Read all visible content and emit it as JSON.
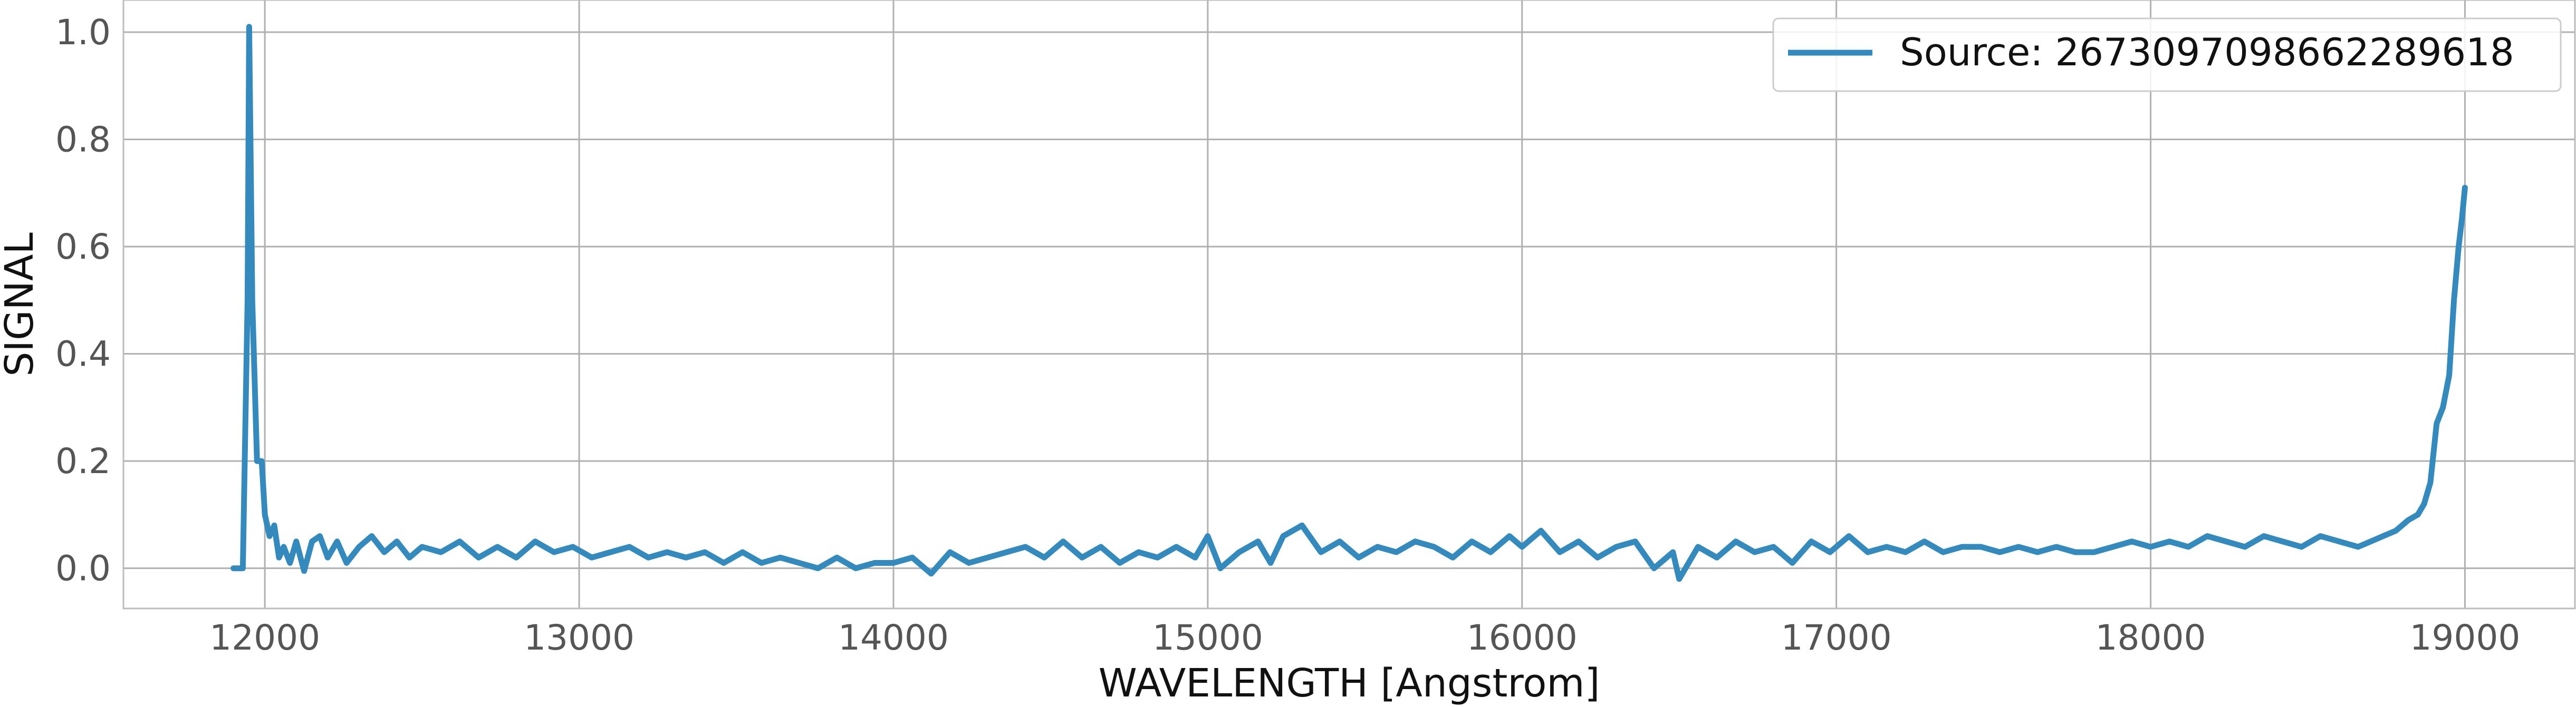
{
  "chart_data": {
    "type": "line",
    "title": "",
    "xlabel": "WAVELENGTH [Angstrom]",
    "ylabel": "SIGNAL",
    "xlim": [
      11550,
      19350
    ],
    "ylim": [
      -0.075,
      1.06
    ],
    "x_ticks": [
      12000,
      13000,
      14000,
      15000,
      16000,
      17000,
      18000,
      19000
    ],
    "y_ticks": [
      0.0,
      0.2,
      0.4,
      0.6,
      0.8,
      1.0
    ],
    "y_tick_labels": [
      "0.0",
      "0.2",
      "0.4",
      "0.6",
      "0.8",
      "1.0"
    ],
    "grid": true,
    "legend_position": "top-right",
    "series_color": "#348abd",
    "series": [
      {
        "name": "Source: 2673097098662289618",
        "x": [
          11900,
          11930,
          11945,
          11950,
          11960,
          11975,
          11990,
          12000,
          12015,
          12030,
          12045,
          12060,
          12080,
          12100,
          12125,
          12150,
          12175,
          12200,
          12230,
          12260,
          12300,
          12340,
          12380,
          12420,
          12460,
          12500,
          12560,
          12620,
          12680,
          12740,
          12800,
          12860,
          12920,
          12980,
          13040,
          13100,
          13160,
          13220,
          13280,
          13340,
          13400,
          13460,
          13520,
          13580,
          13640,
          13700,
          13760,
          13820,
          13880,
          13940,
          14000,
          14060,
          14120,
          14180,
          14240,
          14300,
          14360,
          14420,
          14480,
          14540,
          14600,
          14660,
          14720,
          14780,
          14840,
          14900,
          14960,
          15000,
          15040,
          15100,
          15160,
          15200,
          15240,
          15300,
          15360,
          15420,
          15480,
          15540,
          15600,
          15660,
          15720,
          15780,
          15840,
          15900,
          15960,
          16000,
          16060,
          16120,
          16180,
          16240,
          16300,
          16360,
          16420,
          16480,
          16500,
          16560,
          16620,
          16680,
          16740,
          16800,
          16860,
          16920,
          16980,
          17040,
          17100,
          17160,
          17220,
          17280,
          17340,
          17400,
          17460,
          17520,
          17580,
          17640,
          17700,
          17760,
          17820,
          17880,
          17940,
          18000,
          18060,
          18120,
          18180,
          18240,
          18300,
          18360,
          18420,
          18480,
          18540,
          18600,
          18660,
          18700,
          18740,
          18780,
          18820,
          18850,
          18870,
          18890,
          18910,
          18930,
          18950,
          18965,
          18980,
          18990,
          19000
        ],
        "y": [
          0.0,
          0.0,
          0.5,
          1.01,
          0.5,
          0.2,
          0.2,
          0.1,
          0.06,
          0.08,
          0.02,
          0.04,
          0.01,
          0.05,
          -0.005,
          0.05,
          0.06,
          0.02,
          0.05,
          0.01,
          0.04,
          0.06,
          0.03,
          0.05,
          0.02,
          0.04,
          0.03,
          0.05,
          0.02,
          0.04,
          0.02,
          0.05,
          0.03,
          0.04,
          0.02,
          0.03,
          0.04,
          0.02,
          0.03,
          0.02,
          0.03,
          0.01,
          0.03,
          0.01,
          0.02,
          0.01,
          0.0,
          0.02,
          0.0,
          0.01,
          0.01,
          0.02,
          -0.01,
          0.03,
          0.01,
          0.02,
          0.03,
          0.04,
          0.02,
          0.05,
          0.02,
          0.04,
          0.01,
          0.03,
          0.02,
          0.04,
          0.02,
          0.06,
          0.0,
          0.03,
          0.05,
          0.01,
          0.06,
          0.08,
          0.03,
          0.05,
          0.02,
          0.04,
          0.03,
          0.05,
          0.04,
          0.02,
          0.05,
          0.03,
          0.06,
          0.04,
          0.07,
          0.03,
          0.05,
          0.02,
          0.04,
          0.05,
          0.0,
          0.03,
          -0.02,
          0.04,
          0.02,
          0.05,
          0.03,
          0.04,
          0.01,
          0.05,
          0.03,
          0.06,
          0.03,
          0.04,
          0.03,
          0.05,
          0.03,
          0.04,
          0.04,
          0.03,
          0.04,
          0.03,
          0.04,
          0.03,
          0.03,
          0.04,
          0.05,
          0.04,
          0.05,
          0.04,
          0.06,
          0.05,
          0.04,
          0.06,
          0.05,
          0.04,
          0.06,
          0.05,
          0.04,
          0.05,
          0.06,
          0.07,
          0.09,
          0.1,
          0.12,
          0.16,
          0.27,
          0.3,
          0.36,
          0.5,
          0.6,
          0.65,
          0.71
        ]
      }
    ]
  }
}
